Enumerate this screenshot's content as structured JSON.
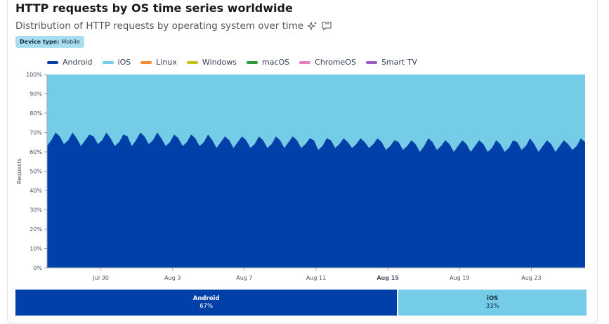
{
  "title": "HTTP requests by OS time series worldwide",
  "subtitle": "Distribution of HTTP requests by operating system over time",
  "icons": {
    "sparkle": "sparkle-icon",
    "comment": "quote-comment-icon"
  },
  "badge": {
    "label": "Device type:",
    "value": "Mobile"
  },
  "legend": [
    {
      "name": "Android",
      "color": "#0040a8"
    },
    {
      "name": "iOS",
      "color": "#74cce6"
    },
    {
      "name": "Linux",
      "color": "#f58a32"
    },
    {
      "name": "Windows",
      "color": "#c7c21b"
    },
    {
      "name": "macOS",
      "color": "#2d9b3a"
    },
    {
      "name": "ChromeOS",
      "color": "#e77cc9"
    },
    {
      "name": "Smart TV",
      "color": "#9b5fc7"
    }
  ],
  "chart_data": {
    "type": "area",
    "stacked": true,
    "ylabel": "Requests",
    "ylim": [
      0,
      100
    ],
    "y_ticks": [
      "0%",
      "10%",
      "20%",
      "30%",
      "40%",
      "50%",
      "60%",
      "70%",
      "80%",
      "90%",
      "100%"
    ],
    "x_start": "2024-07-27",
    "x_end": "2024-08-26",
    "x_ticks": [
      {
        "label": "Jul 30",
        "date": "2024-07-30",
        "bold": false
      },
      {
        "label": "Aug 3",
        "date": "2024-08-03",
        "bold": false
      },
      {
        "label": "Aug 7",
        "date": "2024-08-07",
        "bold": false
      },
      {
        "label": "Aug 11",
        "date": "2024-08-11",
        "bold": false
      },
      {
        "label": "Aug 15",
        "date": "2024-08-15",
        "bold": true
      },
      {
        "label": "Aug 19",
        "date": "2024-08-19",
        "bold": false
      },
      {
        "label": "Aug 23",
        "date": "2024-08-23",
        "bold": false
      }
    ],
    "series": [
      {
        "name": "Android",
        "color": "#0040a8",
        "values": [
          63,
          66,
          70,
          68,
          64,
          66,
          70,
          67,
          63,
          66,
          69,
          68,
          64,
          66,
          70,
          67,
          63,
          65,
          69,
          68,
          63,
          66,
          70,
          68,
          64,
          66,
          70,
          67,
          63,
          65,
          69,
          67,
          63,
          65,
          69,
          67,
          63,
          65,
          69,
          66,
          62,
          65,
          68,
          66,
          62,
          65,
          68,
          66,
          62,
          64,
          68,
          66,
          62,
          64,
          68,
          66,
          62,
          65,
          68,
          66,
          62,
          64,
          67,
          66,
          61,
          63,
          67,
          66,
          62,
          64,
          67,
          65,
          62,
          64,
          67,
          65,
          62,
          64,
          67,
          65,
          61,
          63,
          66,
          65,
          61,
          63,
          66,
          64,
          60,
          63,
          67,
          65,
          61,
          63,
          66,
          64,
          60,
          63,
          66,
          64,
          60,
          63,
          66,
          64,
          60,
          62,
          66,
          64,
          60,
          62,
          66,
          65,
          61,
          63,
          67,
          64,
          60,
          63,
          66,
          64,
          60,
          63,
          66,
          64,
          61,
          63,
          67,
          65
        ]
      },
      {
        "name": "iOS",
        "color": "#74cce6",
        "note": "remainder to 100%"
      }
    ],
    "shares": [
      {
        "name": "Android",
        "percent": "67%",
        "value": 67,
        "color": "#0040a8",
        "text_color": "#ffffff"
      },
      {
        "name": "iOS",
        "percent": "33%",
        "value": 33,
        "color": "#74cce6",
        "text_color": "#10303f"
      }
    ]
  }
}
